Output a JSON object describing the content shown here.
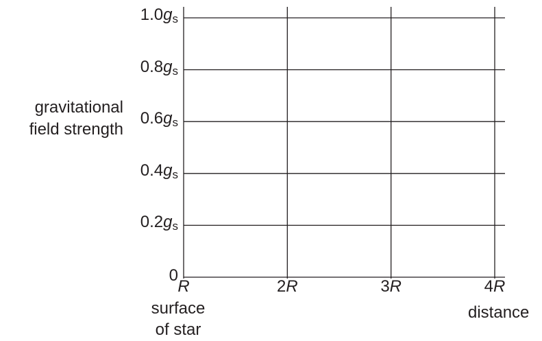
{
  "chart_data": {
    "type": "line",
    "title": "",
    "ylabel_lines": [
      "gravitational",
      "field strength"
    ],
    "xlabel": "distance",
    "x_start_annotation_lines": [
      "surface",
      "of star"
    ],
    "x_ticks": [
      {
        "coef": "",
        "sym": "R",
        "value": 1
      },
      {
        "coef": "2",
        "sym": "R",
        "value": 2
      },
      {
        "coef": "3",
        "sym": "R",
        "value": 3
      },
      {
        "coef": "4",
        "sym": "R",
        "value": 4
      }
    ],
    "y_ticks": [
      {
        "num": "0",
        "value": 0
      },
      {
        "num": "0.2",
        "value": 0.2
      },
      {
        "num": "0.4",
        "value": 0.4
      },
      {
        "num": "0.6",
        "value": 0.6
      },
      {
        "num": "0.8",
        "value": 0.8
      },
      {
        "num": "1.0",
        "value": 1.0
      }
    ],
    "y_unit_symbol": "g",
    "y_unit_subscript": "s",
    "xlim": [
      1,
      4
    ],
    "ylim": [
      0,
      1.0
    ],
    "grid": true,
    "series": [],
    "line_color": "#231f20"
  }
}
